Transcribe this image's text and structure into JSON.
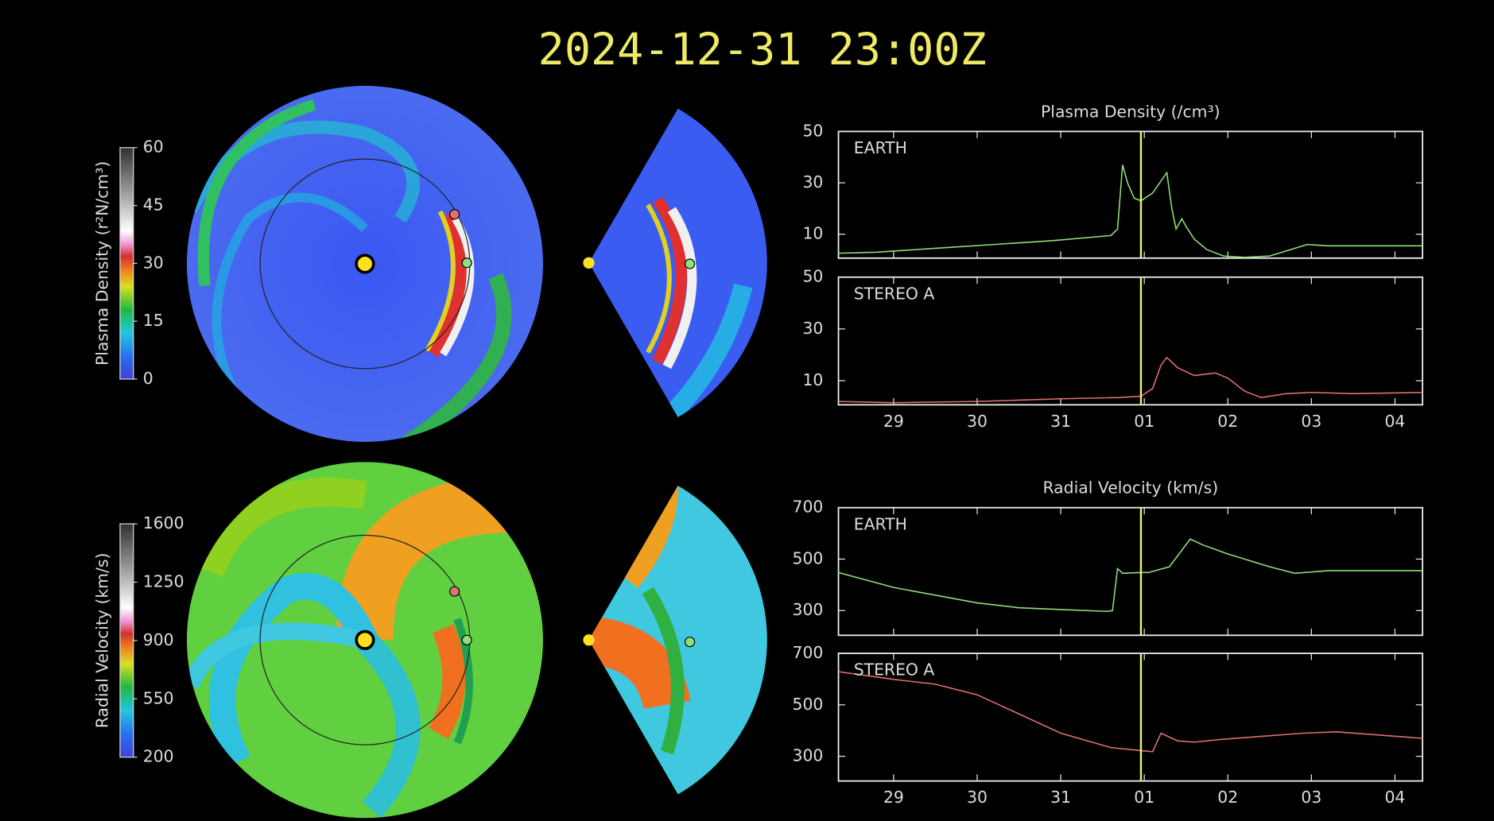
{
  "title": "2024-12-31 23:00Z",
  "chart_data": [
    {
      "type": "colorbar",
      "label": "Plasma Density (r²N/cm³)",
      "ylim": [
        0,
        60
      ],
      "yticks": [
        0,
        15,
        30,
        45,
        60
      ]
    },
    {
      "type": "colorbar",
      "label": "Radial Velocity (km/s)",
      "ylim": [
        200,
        1600
      ],
      "yticks": [
        200,
        550,
        900,
        1250,
        1600
      ]
    },
    {
      "type": "line",
      "title": "Plasma Density (/cm³)",
      "vline": 31.96,
      "xlim": [
        28.34,
        35.33
      ],
      "xticks": [
        29,
        30,
        31,
        32,
        33,
        34,
        35
      ],
      "ylim": [
        0.7,
        50
      ],
      "yticks": [
        10,
        30,
        50
      ],
      "series": [
        {
          "name": "EARTH",
          "color": "#8fe07a",
          "x": [
            28.34,
            28.8,
            29.5,
            30.2,
            30.9,
            31.6,
            31.68,
            31.74,
            31.8,
            31.88,
            31.96,
            32.1,
            32.27,
            32.33,
            32.38,
            32.45,
            32.5,
            32.6,
            32.75,
            32.95,
            33.2,
            33.5,
            33.75,
            33.95,
            34.2,
            35.33
          ],
          "values": [
            2.6,
            3,
            4.5,
            6,
            7.5,
            9.5,
            12,
            37,
            30,
            24,
            23,
            26,
            34,
            20,
            12,
            16,
            13,
            8,
            4,
            1.5,
            1,
            1.5,
            4,
            6,
            5.5,
            5.5
          ]
        }
      ]
    },
    {
      "type": "line",
      "vline": 31.96,
      "xlim": [
        28.34,
        35.33
      ],
      "xticks": [
        29,
        30,
        31,
        {
          "value": 32,
          "label": "01"
        },
        {
          "value": 33,
          "label": "02"
        },
        {
          "value": 34,
          "label": "03"
        },
        {
          "value": 35,
          "label": "04"
        }
      ],
      "ylim": [
        0.7,
        50
      ],
      "yticks": [
        10,
        30,
        50
      ],
      "series": [
        {
          "name": "STEREO A",
          "color": "#e07272",
          "x": [
            28.34,
            29,
            30,
            31,
            31.7,
            31.96,
            32.1,
            32.2,
            32.27,
            32.4,
            32.6,
            32.85,
            33.0,
            33.2,
            33.4,
            33.7,
            34.0,
            34.5,
            35.33
          ],
          "values": [
            2,
            1.5,
            2,
            3,
            3.5,
            4,
            7,
            16,
            19,
            15,
            12,
            13,
            11,
            6,
            3.5,
            5,
            5.5,
            5,
            5.5
          ]
        }
      ]
    },
    {
      "type": "line",
      "title": "Radial Velocity (km/s)",
      "vline": 31.96,
      "xlim": [
        28.34,
        35.33
      ],
      "xticks": [
        29,
        30,
        31,
        32,
        33,
        34,
        35
      ],
      "ylim": [
        204,
        700
      ],
      "yticks": [
        300,
        500,
        700
      ],
      "series": [
        {
          "name": "EARTH",
          "color": "#8fe07a",
          "x": [
            28.34,
            29,
            30,
            30.5,
            31,
            31.55,
            31.62,
            31.68,
            31.74,
            31.96,
            32.05,
            32.3,
            32.55,
            32.7,
            33.0,
            33.5,
            33.8,
            34.2,
            35.33
          ],
          "values": [
            448,
            390,
            330,
            311,
            304,
            297,
            300,
            463,
            445,
            448,
            448,
            470,
            578,
            555,
            520,
            470,
            445,
            455,
            455
          ]
        }
      ]
    },
    {
      "type": "line",
      "vline": 31.96,
      "xlim": [
        28.34,
        35.33
      ],
      "xticks": [
        29,
        30,
        31,
        {
          "value": 32,
          "label": "01"
        },
        {
          "value": 33,
          "label": "02"
        },
        {
          "value": 34,
          "label": "03"
        },
        {
          "value": 35,
          "label": "04"
        }
      ],
      "ylim": [
        204,
        700
      ],
      "yticks": [
        300,
        500,
        700
      ],
      "series": [
        {
          "name": "STEREO A",
          "color": "#e07272",
          "x": [
            28.34,
            29,
            29.5,
            30,
            31,
            31.6,
            31.96,
            32.1,
            32.2,
            32.4,
            32.6,
            32.9,
            33.3,
            33.9,
            34.3,
            35.33
          ],
          "values": [
            629,
            599,
            580,
            539,
            390,
            334,
            322,
            318,
            390,
            360,
            355,
            365,
            375,
            390,
            395,
            370
          ]
        }
      ]
    }
  ]
}
